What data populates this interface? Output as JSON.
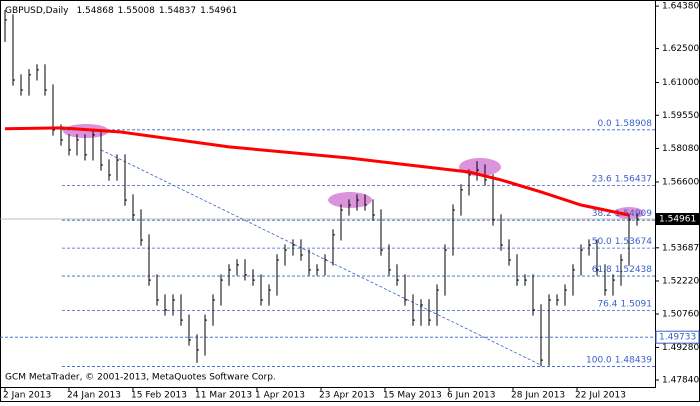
{
  "chart_data": {
    "type": "ohlc",
    "symbol": "GBPUSD,Daily",
    "header_values": [
      1.54868,
      1.55008,
      1.54837,
      1.54961
    ],
    "footer": "GCM MetaTrader, © 2001-2013, MetaQuotes Software Corp.",
    "color": "#000000",
    "grid": false,
    "xlim": [
      -1.25,
      162.5
    ],
    "ylim": [
      1.4753,
      1.6465
    ],
    "xticks": [
      {
        "value": 0,
        "label": "2 Jan 2013"
      },
      {
        "value": 16,
        "label": "24 Jan 2013"
      },
      {
        "value": 32,
        "label": "15 Feb 2013"
      },
      {
        "value": 48,
        "label": "11 Mar 2013"
      },
      {
        "value": 63,
        "label": "1 Apr 2013"
      },
      {
        "value": 79,
        "label": "23 Apr 2013"
      },
      {
        "value": 95,
        "label": "15 May 2013"
      },
      {
        "value": 111,
        "label": "6 Jun 2013"
      },
      {
        "value": 127,
        "label": "28 Jun 2013"
      },
      {
        "value": 143,
        "label": "22 Jul 2013"
      }
    ],
    "yticks": [
      {
        "value": 1.6438,
        "label": "1.64380"
      },
      {
        "value": 1.625,
        "label": "1.62500"
      },
      {
        "value": 1.61,
        "label": "1.61000"
      },
      {
        "value": 1.5955,
        "label": "1.59550"
      },
      {
        "value": 1.5808,
        "label": "1.58080"
      },
      {
        "value": 1.566,
        "label": "1.56600"
      },
      1.53687,
      {
        "value": 1.5222,
        "label": "1.52220"
      },
      {
        "value": 1.5076,
        "label": "1.50760"
      },
      {
        "value": 1.4928,
        "label": "1.49280"
      },
      {
        "value": 1.4784,
        "label": "1.47840"
      }
    ],
    "x": [
      0,
      2,
      4,
      6,
      8,
      10,
      12,
      14,
      16,
      18,
      20,
      22,
      24,
      26,
      28,
      30,
      32,
      34,
      36,
      38,
      40,
      42,
      44,
      46,
      48,
      50,
      52,
      54,
      56,
      58,
      60,
      62,
      64,
      66,
      68,
      70,
      72,
      74,
      76,
      78,
      80,
      82,
      84,
      86,
      88,
      90,
      92,
      94,
      96,
      98,
      100,
      102,
      104,
      106,
      108,
      110,
      112,
      114,
      116,
      118,
      120,
      122,
      124,
      126,
      128,
      130,
      132,
      134,
      136,
      138,
      140,
      142,
      144,
      146,
      148,
      150,
      152,
      154,
      156,
      158
    ],
    "high": [
      1.642,
      1.6402,
      1.6136,
      1.6159,
      1.6181,
      1.6181,
      1.6092,
      1.5915,
      1.5871,
      1.5871,
      1.5871,
      1.5893,
      1.5893,
      1.576,
      1.5782,
      1.5782,
      1.5605,
      1.5539,
      1.5428,
      1.5251,
      1.5163,
      1.5163,
      1.5163,
      1.5074,
      1.4986,
      1.5074,
      1.5163,
      1.5251,
      1.5296,
      1.5318,
      1.5318,
      1.5274,
      1.5251,
      1.5207,
      1.534,
      1.5384,
      1.5406,
      1.5406,
      1.5362,
      1.5296,
      1.534,
      1.5451,
      1.5561,
      1.5583,
      1.5605,
      1.5605,
      1.5583,
      1.5539,
      1.5384,
      1.5296,
      1.5251,
      1.5163,
      1.5141,
      1.5141,
      1.5207,
      1.5384,
      1.5561,
      1.565,
      1.5716,
      1.5752,
      1.5738,
      1.5694,
      1.5517,
      1.5406,
      1.534,
      1.5251,
      1.5251,
      1.5119,
      1.5163,
      1.5163,
      1.5207,
      1.5296,
      1.5384,
      1.5406,
      1.5406,
      1.5296,
      1.5251,
      1.534,
      1.5517,
      1.5521
    ],
    "low": [
      1.628,
      1.6086,
      1.6042,
      1.6042,
      1.6109,
      1.6042,
      1.5865,
      1.5821,
      1.5777,
      1.5777,
      1.5755,
      1.5755,
      1.571,
      1.5666,
      1.5666,
      1.5555,
      1.5489,
      1.5378,
      1.5201,
      1.5113,
      1.5069,
      1.5069,
      1.5024,
      1.4936,
      1.486,
      1.4892,
      1.5024,
      1.5113,
      1.5201,
      1.5246,
      1.5224,
      1.5201,
      1.5113,
      1.5113,
      1.5157,
      1.529,
      1.5334,
      1.5312,
      1.5246,
      1.5246,
      1.5246,
      1.529,
      1.5401,
      1.5511,
      1.5533,
      1.5533,
      1.5489,
      1.5334,
      1.5246,
      1.5201,
      1.5113,
      1.5024,
      1.5024,
      1.5024,
      1.5024,
      1.5157,
      1.5334,
      1.5511,
      1.56,
      1.5666,
      1.5644,
      1.5467,
      1.5356,
      1.529,
      1.5201,
      1.5201,
      1.5069,
      1.4844,
      1.4847,
      1.5113,
      1.5113,
      1.5157,
      1.5246,
      1.5334,
      1.5246,
      1.5157,
      1.5157,
      1.5201,
      1.529,
      1.5467
    ],
    "close": [
      1.6377,
      1.6111,
      1.6067,
      1.6134,
      1.6156,
      1.6067,
      1.589,
      1.5846,
      1.5802,
      1.5846,
      1.578,
      1.5868,
      1.5735,
      1.5691,
      1.5757,
      1.558,
      1.5514,
      1.5403,
      1.5226,
      1.5138,
      1.5094,
      1.5138,
      1.5049,
      1.4961,
      1.4917,
      1.5049,
      1.5138,
      1.5226,
      1.5271,
      1.5293,
      1.5249,
      1.5226,
      1.5138,
      1.5182,
      1.5315,
      1.5359,
      1.5381,
      1.5337,
      1.5271,
      1.5271,
      1.5315,
      1.5426,
      1.5536,
      1.5558,
      1.558,
      1.5558,
      1.5514,
      1.5359,
      1.5271,
      1.5226,
      1.5138,
      1.5049,
      1.5116,
      1.5049,
      1.5182,
      1.5359,
      1.5536,
      1.5625,
      1.5691,
      1.5713,
      1.5669,
      1.5492,
      1.5381,
      1.5315,
      1.5226,
      1.5226,
      1.5094,
      1.4872,
      1.5138,
      1.5138,
      1.5182,
      1.5271,
      1.5359,
      1.5381,
      1.5271,
      1.5182,
      1.5226,
      1.5315,
      1.5492,
      1.5496
    ],
    "ma": {
      "color": "#ff0000",
      "x": [
        0,
        14,
        29,
        56,
        86,
        116,
        124,
        134,
        144,
        156
      ],
      "values": [
        1.5895,
        1.5899,
        1.5881,
        1.5815,
        1.5766,
        1.5704,
        1.5669,
        1.5616,
        1.5558,
        1.5514
      ]
    },
    "trendline": {
      "color": "#3a5fcd",
      "x": [
        24,
        134
      ],
      "values": [
        1.5802,
        1.485
      ]
    },
    "fibo": {
      "color": "#3a5fcd",
      "levels": [
        {
          "label": "0.0",
          "value": 1.58908
        },
        {
          "label": "23.6",
          "value": 1.56437
        },
        {
          "label": "38.2",
          "value": 1.54909
        },
        {
          "label": "50.0",
          "value": 1.53674
        },
        {
          "label": "61.8",
          "value": 1.52438
        },
        {
          "label": "76.4",
          "value": 1.5091
        },
        {
          "label": "100.0",
          "value": 1.48439
        }
      ]
    },
    "hline": {
      "color": "#3a5fcd",
      "value": 1.49733
    },
    "last_price": 1.54961
  }
}
